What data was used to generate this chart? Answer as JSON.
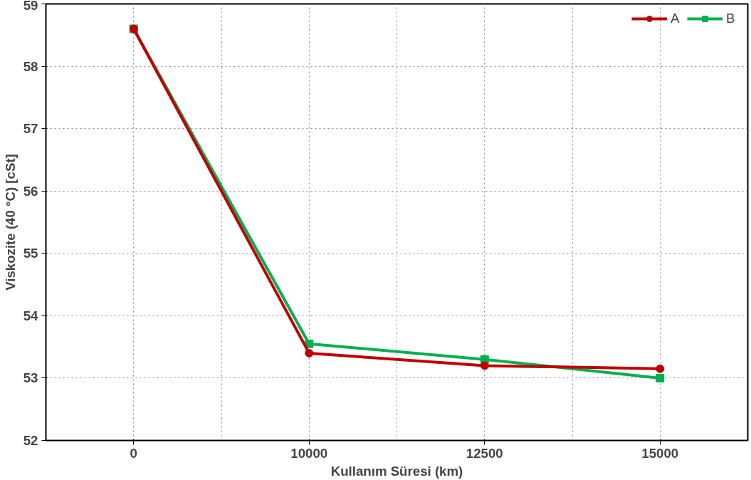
{
  "chart_data": {
    "type": "line",
    "xlabel": "Kullanım Süresi (km)",
    "ylabel": "Viskozite (40 °C) [cSt]",
    "categories": [
      "0",
      "10000",
      "12500",
      "15000"
    ],
    "series": [
      {
        "name": "A",
        "color": "#c00000",
        "marker": "circle",
        "values": [
          58.6,
          53.4,
          53.2,
          53.15
        ]
      },
      {
        "name": "B",
        "color": "#00b050",
        "marker": "square",
        "values": [
          58.6,
          53.55,
          53.3,
          53.0
        ]
      }
    ],
    "ylim": [
      52,
      59
    ],
    "yticks": [
      52,
      53,
      54,
      55,
      56,
      57,
      58,
      59
    ],
    "grid": true,
    "legend": "top right",
    "line_style": "solid"
  }
}
